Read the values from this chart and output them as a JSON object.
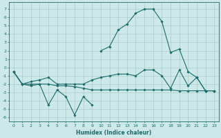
{
  "bg_color": "#cce8e8",
  "line_color": "#1a6b6b",
  "grid_color": "#aacccc",
  "xlabel": "Humidex (Indice chaleur)",
  "ylim": [
    -6.5,
    7.8
  ],
  "xlim": [
    -0.5,
    23.5
  ],
  "yticks": [
    -6,
    -5,
    -4,
    -3,
    -2,
    -1,
    0,
    1,
    2,
    3,
    4,
    5,
    6,
    7
  ],
  "xticks": [
    0,
    1,
    2,
    3,
    4,
    5,
    6,
    7,
    8,
    9,
    10,
    11,
    12,
    13,
    14,
    15,
    16,
    17,
    18,
    19,
    20,
    21,
    22,
    23
  ],
  "line_zigzag_x": [
    0,
    1,
    2,
    3,
    4,
    5,
    6,
    7,
    8,
    9
  ],
  "line_zigzag_y": [
    -0.5,
    -2.0,
    -2.2,
    -2.0,
    -4.5,
    -2.7,
    -3.5,
    -5.7,
    -3.5,
    -4.5
  ],
  "line_lower_x": [
    0,
    1,
    2,
    3,
    4,
    5,
    6,
    7,
    8,
    9,
    10,
    11,
    12,
    13,
    14,
    15,
    16,
    17,
    18,
    19,
    20,
    21,
    22,
    23
  ],
  "line_lower_y": [
    -0.5,
    -2.0,
    -2.0,
    -2.0,
    -2.0,
    -2.2,
    -2.2,
    -2.3,
    -2.5,
    -2.7,
    -2.7,
    -2.7,
    -2.7,
    -2.7,
    -2.7,
    -2.7,
    -2.7,
    -2.7,
    -2.7,
    -2.8,
    -2.8,
    -2.8,
    -2.8,
    -2.8
  ],
  "line_upper_x": [
    0,
    1,
    2,
    3,
    4,
    5,
    6,
    7,
    8,
    9,
    10,
    11,
    12,
    13,
    14,
    15,
    16,
    17,
    18,
    19,
    20,
    21,
    22,
    23
  ],
  "line_upper_y": [
    -0.5,
    -2.0,
    -1.7,
    -1.5,
    -1.2,
    -2.0,
    -2.0,
    -2.0,
    -2.0,
    -1.5,
    -1.2,
    -1.0,
    -0.8,
    -0.8,
    -1.0,
    -0.3,
    -0.3,
    -1.0,
    -2.5,
    -0.3,
    -2.2,
    -1.2,
    -2.8,
    -2.8
  ],
  "line_main_x": [
    10,
    11,
    12,
    13,
    14,
    15,
    16,
    17,
    18,
    19,
    20,
    21,
    22,
    23
  ],
  "line_main_y": [
    2.0,
    2.5,
    4.5,
    5.2,
    6.5,
    7.0,
    7.0,
    5.5,
    1.8,
    2.2,
    -0.5,
    -1.2,
    -2.8,
    -2.8
  ],
  "marker": "D",
  "ms": 1.8,
  "lw": 0.8,
  "label_fontsize": 4.5,
  "xlabel_fontsize": 5.5
}
